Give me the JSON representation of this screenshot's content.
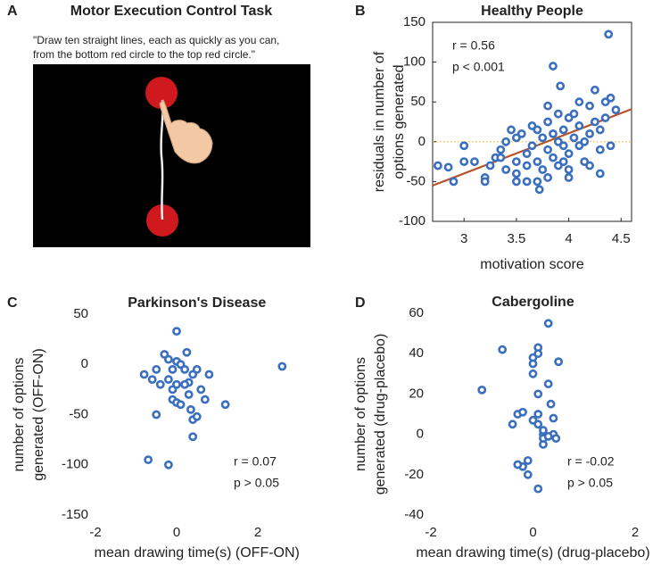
{
  "panel_a": {
    "label": "A",
    "title": "Motor Execution Control Task",
    "instruction": [
      "\"Draw ten straight lines, each as quickly as you can,",
      "from the bottom red circle to the top red circle.\""
    ]
  },
  "chart_data": [
    {
      "type": "scatter",
      "panel_label": "B",
      "title": "Healthy People",
      "xlabel": "motivation score",
      "ylabel": [
        "residuals in number of",
        "options generated"
      ],
      "annotations": [
        "r = 0.56",
        "p < 0.001"
      ],
      "xlim": [
        2.7,
        4.6
      ],
      "xticks": [
        3,
        3.5,
        4,
        4.5
      ],
      "ylim": [
        -100,
        150
      ],
      "yticks": [
        -100,
        -50,
        0,
        50,
        100,
        150
      ],
      "frame": true,
      "color": "#3a6fbf",
      "fit": {
        "x": [
          2.7,
          4.6
        ],
        "y": [
          -55,
          41
        ],
        "color": "#b5532a"
      },
      "hline": {
        "y": 0,
        "color": "#f0b030"
      },
      "x": [
        2.75,
        2.85,
        2.9,
        3.0,
        3.0,
        3.2,
        3.2,
        3.25,
        3.3,
        3.35,
        3.4,
        3.4,
        3.45,
        3.5,
        3.5,
        3.5,
        3.5,
        3.55,
        3.6,
        3.6,
        3.65,
        3.65,
        3.7,
        3.7,
        3.72,
        3.75,
        3.75,
        3.8,
        3.8,
        3.8,
        3.8,
        3.85,
        3.85,
        3.85,
        3.9,
        3.9,
        3.9,
        3.92,
        3.95,
        3.95,
        4.0,
        4.0,
        4.0,
        4.05,
        4.05,
        4.1,
        4.1,
        4.15,
        4.15,
        4.2,
        4.2,
        4.25,
        4.25,
        4.3,
        4.3,
        4.35,
        4.35,
        4.38,
        4.4,
        4.4,
        4.45,
        4.3,
        4.2,
        3.95,
        3.7,
        3.6,
        3.35,
        3.1,
        4.1,
        4.0
      ],
      "values": [
        -30,
        -32,
        -50,
        -5,
        -25,
        -45,
        -50,
        -30,
        -20,
        -10,
        0,
        -35,
        15,
        -50,
        -40,
        5,
        -25,
        10,
        -15,
        -30,
        -5,
        20,
        -50,
        -25,
        -60,
        -35,
        5,
        -10,
        -45,
        25,
        45,
        -20,
        95,
        10,
        -30,
        0,
        35,
        70,
        -5,
        15,
        -15,
        30,
        -35,
        5,
        35,
        -5,
        20,
        0,
        -25,
        10,
        45,
        65,
        25,
        -10,
        15,
        30,
        50,
        135,
        55,
        -5,
        40,
        -40,
        -30,
        -25,
        15,
        -50,
        -20,
        -25,
        50,
        -45
      ]
    },
    {
      "type": "scatter",
      "panel_label": "C",
      "title": "Parkinson's Disease",
      "xlabel": "mean drawing time(s) (OFF-ON)",
      "ylabel": [
        "number of options",
        "generated (OFF-ON)"
      ],
      "annotations": [
        "r = 0.07",
        "p > 0.05"
      ],
      "xlim": [
        -2,
        3
      ],
      "xticks": [
        -2,
        0,
        2
      ],
      "ylim": [
        -150,
        50
      ],
      "yticks": [
        -150,
        -100,
        -50,
        0,
        50
      ],
      "frame": false,
      "color": "#3a6fbf",
      "x": [
        -0.8,
        -0.6,
        -0.5,
        -0.4,
        -0.3,
        -0.2,
        -0.2,
        -0.1,
        -0.1,
        0,
        0,
        0,
        0.1,
        0.2,
        0.25,
        0.3,
        0.3,
        0.35,
        0.4,
        0.4,
        0.5,
        0.5,
        0.6,
        0.7,
        0.8,
        1.2,
        0.4,
        0.1,
        -0.5,
        -0.7,
        -0.2,
        2.6,
        0,
        -0.1,
        0.2
      ],
      "values": [
        -10,
        -15,
        -5,
        -20,
        10,
        5,
        -15,
        -25,
        -35,
        -38,
        -20,
        3,
        0,
        -5,
        12,
        -18,
        -30,
        -45,
        -55,
        -10,
        -52,
        -5,
        -25,
        -35,
        -10,
        -40,
        -72,
        -40,
        -50,
        -95,
        -100,
        -2,
        33,
        -5,
        -20
      ]
    },
    {
      "type": "scatter",
      "panel_label": "D",
      "title": "Cabergoline",
      "xlabel": "mean drawing time(s) (drug-placebo)",
      "ylabel": [
        "number of options",
        "generated (drug-placebo)"
      ],
      "annotations": [
        "r = -0.02",
        "p > 0.05"
      ],
      "xlim": [
        -2,
        2
      ],
      "xticks": [
        -2,
        0,
        2
      ],
      "ylim": [
        -40,
        60
      ],
      "yticks": [
        -40,
        -20,
        0,
        20,
        40,
        60
      ],
      "frame": false,
      "color": "#3a6fbf",
      "x": [
        -1,
        -0.6,
        -0.4,
        -0.3,
        -0.2,
        -0.2,
        -0.3,
        -0.1,
        -0.1,
        0,
        0,
        0,
        0.1,
        0.1,
        0.1,
        0,
        0.1,
        0.2,
        0.2,
        0.2,
        0.3,
        0.3,
        0.35,
        0.4,
        0.4,
        0.45,
        0.5,
        0.1,
        0.2,
        0.3,
        0.1
      ],
      "values": [
        22,
        42,
        5,
        10,
        11,
        -16,
        -15,
        -13,
        -20,
        38,
        35,
        30,
        43,
        40,
        20,
        7,
        5,
        0,
        -5,
        -2,
        55,
        25,
        15,
        8,
        0,
        -2,
        36,
        -27,
        2,
        -1,
        10
      ]
    }
  ]
}
